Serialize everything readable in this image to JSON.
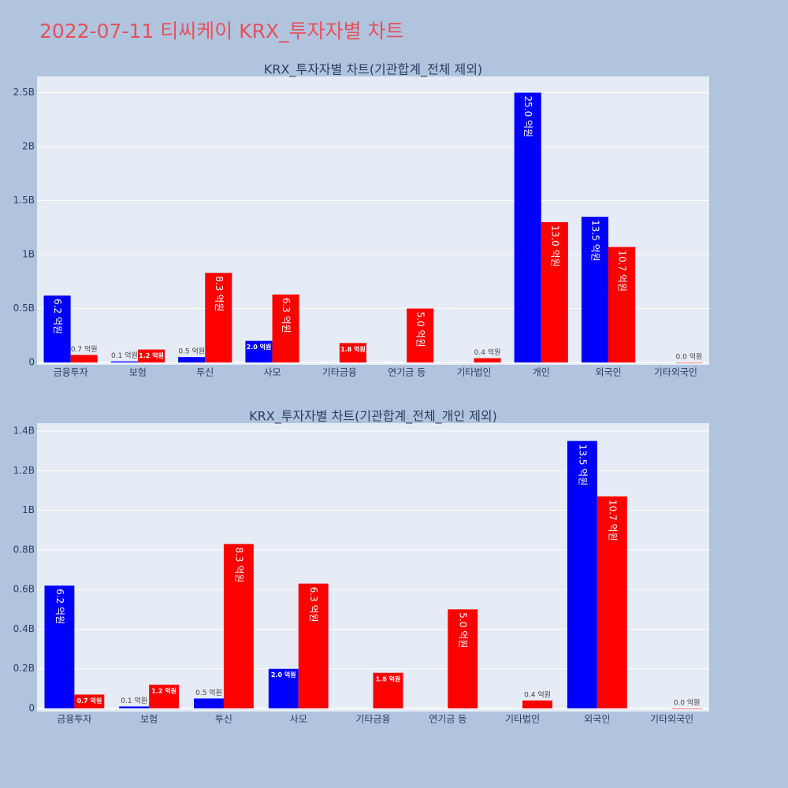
{
  "title": "2022-07-11 티씨케이 KRX_투자자별 차트",
  "chart_data": [
    {
      "type": "bar",
      "title": "KRX_투자자별 차트(기관합계_전체 제외)",
      "categories": [
        "금융투자",
        "보험",
        "투신",
        "사모",
        "기타금융",
        "연기금 등",
        "기타법인",
        "개인",
        "외국인",
        "기타외국인"
      ],
      "series": [
        {
          "color": "#0000ff",
          "values": [
            620000000,
            10000000,
            50000000,
            200000000,
            null,
            null,
            null,
            2500000000,
            1350000000,
            null
          ],
          "value_labels": [
            "6.2 억원",
            "0.1 억원",
            "0.5 억원",
            "2.0 억원",
            null,
            null,
            null,
            "25.0 억원",
            "13.5 억원",
            null
          ]
        },
        {
          "color": "#ff0000",
          "values": [
            70000000,
            120000000,
            830000000,
            630000000,
            180000000,
            500000000,
            40000000,
            1300000000,
            1070000000,
            0
          ],
          "value_labels": [
            "0.7 억원",
            "1.2 억원",
            "8.3 억원",
            "6.3 억원",
            "1.8 억원",
            "5.0 억원",
            "0.4 억원",
            "13.0 억원",
            "10.7 억원",
            "0.0 억원"
          ]
        }
      ],
      "ylim": [
        0,
        2650000000
      ],
      "yticks": [
        0,
        {
          "value": 500000000,
          "label": "0.5B"
        },
        {
          "value": 1000000000,
          "label": "1B"
        },
        {
          "value": 1500000000,
          "label": "1.5B"
        },
        {
          "value": 2000000000,
          "label": "2B"
        },
        {
          "value": 2500000000,
          "label": "2.5B"
        }
      ],
      "grid": true
    },
    {
      "type": "bar",
      "title": "KRX_투자자별 차트(기관합계_전체_개인 제외)",
      "categories": [
        "금융투자",
        "보험",
        "투신",
        "사모",
        "기타금융",
        "연기금 등",
        "기타법인",
        "외국인",
        "기타외국인"
      ],
      "series": [
        {
          "color": "#0000ff",
          "values": [
            620000000,
            10000000,
            50000000,
            200000000,
            null,
            null,
            null,
            1350000000,
            null
          ],
          "value_labels": [
            "6.2 억원",
            "0.1 억원",
            "0.5 억원",
            "2.0 억원",
            null,
            null,
            null,
            "13.5 억원",
            null
          ]
        },
        {
          "color": "#ff0000",
          "values": [
            70000000,
            120000000,
            830000000,
            630000000,
            180000000,
            500000000,
            40000000,
            1070000000,
            0
          ],
          "value_labels": [
            "0.7 억원",
            "1.2 억원",
            "8.3 억원",
            "6.3 억원",
            "1.8 억원",
            "5.0 억원",
            "0.4 억원",
            "10.7 억원",
            "0.0 억원"
          ]
        }
      ],
      "ylim": [
        0,
        1440000000
      ],
      "yticks": [
        0,
        {
          "value": 200000000,
          "label": "0.2B"
        },
        {
          "value": 400000000,
          "label": "0.4B"
        },
        {
          "value": 600000000,
          "label": "0.6B"
        },
        {
          "value": 800000000,
          "label": "0.8B"
        },
        {
          "value": 1000000000,
          "label": "1B"
        },
        {
          "value": 1200000000,
          "label": "1.2B"
        },
        {
          "value": 1400000000,
          "label": "1.4B"
        }
      ],
      "grid": true
    }
  ]
}
